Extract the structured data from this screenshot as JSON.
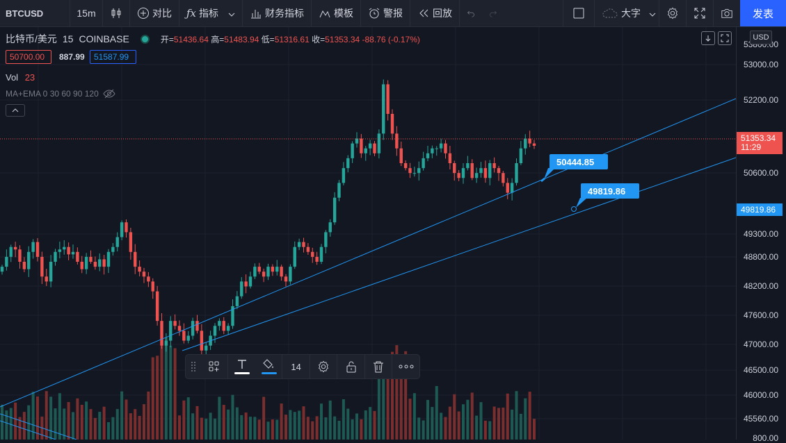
{
  "toolbar": {
    "symbol": "BTCUSD",
    "interval": "15m",
    "compare": "对比",
    "indicators": "指标",
    "financials": "财务指标",
    "templates": "模板",
    "alert": "警报",
    "replay": "回放",
    "font_size": "大字",
    "publish": "发表"
  },
  "legend": {
    "name": "比特币/美元",
    "interval": "15",
    "exchange": "COINBASE",
    "open_label": "开=",
    "open": "51436.64",
    "high_label": "高=",
    "high": "51483.94",
    "low_label": "低=",
    "low": "51316.61",
    "close_label": "收=",
    "close": "51353.34",
    "change": "-88.76 (-0.17%)",
    "bid": "50700.00",
    "spread": "887.99",
    "ask": "51587.99",
    "vol_label": "Vol",
    "vol_value": "23",
    "ma_label": "MA+EMA 0 30 60 90 120"
  },
  "axis": {
    "currency": "USD",
    "top_partial": "53800.00",
    "ticks": [
      "53000.00",
      "52200.00",
      "51353.34",
      "50600.00",
      "49819.86",
      "49300.00",
      "48800.00",
      "48200.00",
      "47600.00",
      "47000.00",
      "46500.00",
      "46000.00",
      "45560.00"
    ],
    "current_price": "51353.34",
    "countdown": "11:29",
    "line_price": "49819.86",
    "bottom_partial": "800.00"
  },
  "callouts": {
    "line1": "50444.85",
    "line2": "49819.86"
  },
  "floating_toolbar": {
    "font_size": "14"
  },
  "colors": {
    "bg": "#131722",
    "up": "#26a69a",
    "down": "#ef5350",
    "line": "#2196f3",
    "accent": "#2962ff"
  },
  "chart_data": {
    "type": "candlestick",
    "ylim": [
      45300,
      53800
    ],
    "y_ticks": [
      53000,
      52200,
      50600,
      49300,
      48800,
      48200,
      47600,
      47000,
      46500,
      46000,
      45560
    ],
    "current_price": 51353.34,
    "trend_line_labels": [
      50444.85,
      49819.86
    ],
    "candles_close": [
      48900,
      49100,
      49300,
      49250,
      49000,
      48850,
      49200,
      49400,
      49100,
      48700,
      48600,
      49000,
      49200,
      49250,
      49300,
      49150,
      49200,
      49000,
      48850,
      49100,
      49000,
      48900,
      49050,
      48900,
      49200,
      49300,
      49500,
      49800,
      49600,
      49200,
      48900,
      48800,
      48700,
      48600,
      48400,
      47800,
      47300,
      47400,
      47800,
      47700,
      47600,
      47400,
      47500,
      47800,
      47600,
      47200,
      47300,
      47500,
      47700,
      47800,
      47600,
      47700,
      48100,
      48300,
      48600,
      48500,
      48700,
      48900,
      48800,
      48700,
      48900,
      48800,
      48900,
      48700,
      48600,
      48900,
      49300,
      49400,
      49300,
      49200,
      49100,
      49000,
      49300,
      49600,
      49800,
      50300,
      50600,
      50900,
      51100,
      51400,
      51500,
      51200,
      51300,
      51400,
      51200,
      51600,
      52600,
      52000,
      51600,
      51300,
      51000,
      50900,
      50800,
      50800,
      50900,
      51100,
      51200,
      51300,
      51300,
      51400,
      51200,
      51000,
      50800,
      50700,
      50900,
      51000,
      50700,
      50800,
      50900,
      50700,
      51000,
      50900,
      50800,
      50600,
      50400,
      50600,
      51000,
      51300,
      51500,
      51400,
      51353
    ]
  }
}
